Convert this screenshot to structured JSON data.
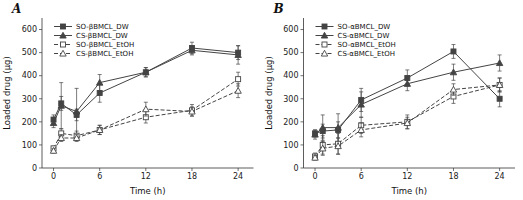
{
  "chart_data": [
    {
      "type": "line",
      "title": "A",
      "xlabel": "Time (h)",
      "ylabel": "Loaded drug (μg)",
      "x": [
        0,
        1,
        3,
        6,
        12,
        18,
        24
      ],
      "xlim": [
        -1.5,
        26
      ],
      "xticks": [
        0,
        6,
        12,
        18,
        24
      ],
      "ylim": [
        0,
        650
      ],
      "yticks": [
        0,
        100,
        200,
        300,
        400,
        500,
        600
      ],
      "grid": false,
      "legend": "upper left",
      "series": [
        {
          "name": "SO-βBMCL_DW",
          "color": "#444444",
          "marker": "square",
          "line_style": "solid",
          "values": [
            210,
            280,
            230,
            325,
            415,
            520,
            500
          ],
          "errors": [
            20,
            30,
            25,
            40,
            20,
            25,
            30
          ]
        },
        {
          "name": "CS-βBMCL_DW",
          "color": "#444444",
          "marker": "triangle",
          "line_style": "solid",
          "values": [
            195,
            270,
            245,
            370,
            415,
            510,
            490
          ],
          "errors": [
            20,
            100,
            100,
            35,
            20,
            20,
            40
          ]
        },
        {
          "name": "SO-βBMCL_EtOH",
          "color": "#444444",
          "marker": "open-square",
          "line_style": "dashed",
          "values": [
            85,
            150,
            140,
            165,
            220,
            250,
            385
          ],
          "errors": [
            10,
            20,
            20,
            20,
            25,
            25,
            30
          ]
        },
        {
          "name": "CS-βBMCL_EtOH",
          "color": "#444444",
          "marker": "open-triangle",
          "line_style": "dashed",
          "values": [
            75,
            130,
            130,
            165,
            255,
            245,
            335
          ],
          "errors": [
            10,
            15,
            15,
            20,
            30,
            20,
            30
          ]
        }
      ]
    },
    {
      "type": "line",
      "title": "B",
      "xlabel": "Time (h)",
      "ylabel": "Loaded drug (μg)",
      "x": [
        0,
        1,
        3,
        6,
        12,
        18,
        24
      ],
      "xlim": [
        -1.5,
        26
      ],
      "xticks": [
        0,
        6,
        12,
        18,
        24
      ],
      "ylim": [
        0,
        650
      ],
      "yticks": [
        0,
        100,
        200,
        300,
        400,
        500,
        600
      ],
      "grid": false,
      "legend": "upper left",
      "series": [
        {
          "name": "SO-αBMCL_DW",
          "color": "#444444",
          "marker": "square",
          "line_style": "solid",
          "values": [
            150,
            160,
            165,
            295,
            390,
            505,
            300
          ],
          "errors": [
            15,
            30,
            35,
            50,
            35,
            30,
            35
          ]
        },
        {
          "name": "CS-αBMCL_DW",
          "color": "#444444",
          "marker": "triangle",
          "line_style": "solid",
          "values": [
            145,
            175,
            175,
            275,
            365,
            415,
            455
          ],
          "errors": [
            20,
            55,
            60,
            55,
            30,
            35,
            35
          ]
        },
        {
          "name": "SO-αBMCL_EtOH",
          "color": "#444444",
          "marker": "open-square",
          "line_style": "dashed",
          "values": [
            50,
            100,
            105,
            185,
            200,
            310,
            360
          ],
          "errors": [
            15,
            40,
            45,
            35,
            30,
            30,
            30
          ]
        },
        {
          "name": "CS-αBMCL_EtOH",
          "color": "#444444",
          "marker": "open-triangle",
          "line_style": "dashed",
          "values": [
            45,
            85,
            95,
            165,
            195,
            340,
            360
          ],
          "errors": [
            10,
            30,
            35,
            30,
            25,
            25,
            30
          ]
        }
      ]
    }
  ]
}
